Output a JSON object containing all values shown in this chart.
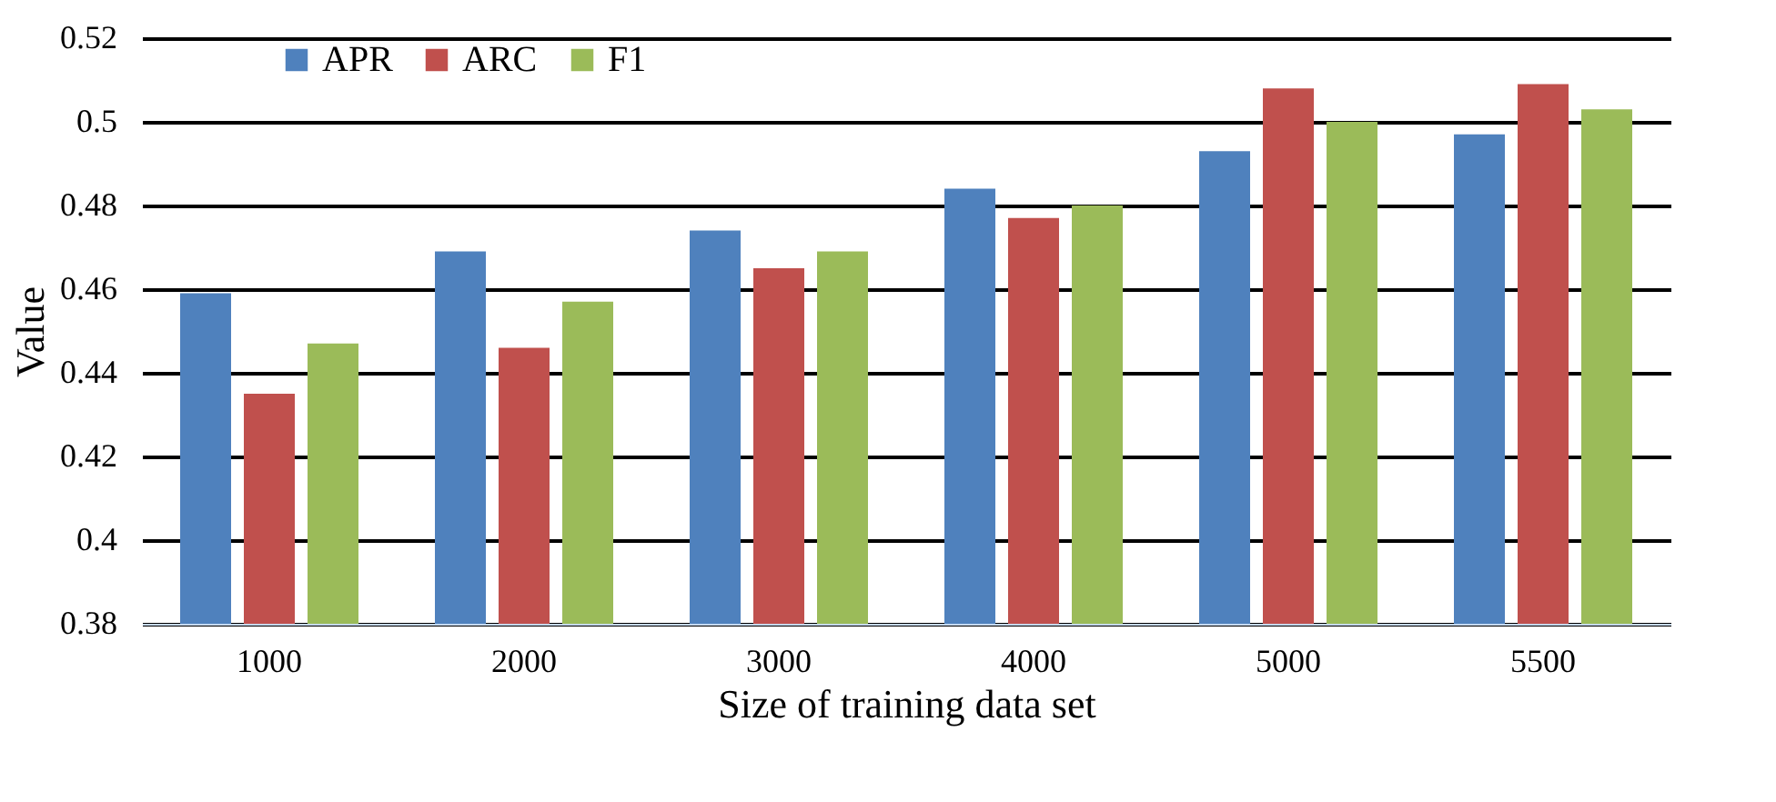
{
  "chart_data": {
    "type": "bar",
    "xlabel": "Size of training data set",
    "ylabel": "Value",
    "categories": [
      "1000",
      "2000",
      "3000",
      "4000",
      "5000",
      "5500"
    ],
    "series": [
      {
        "name": "APR",
        "color": "#4f81bd",
        "values": [
          0.459,
          0.469,
          0.474,
          0.484,
          0.493,
          0.497
        ]
      },
      {
        "name": "ARC",
        "color": "#c0504d",
        "values": [
          0.435,
          0.446,
          0.465,
          0.477,
          0.508,
          0.509
        ]
      },
      {
        "name": "F1",
        "color": "#9bbb59",
        "values": [
          0.447,
          0.457,
          0.469,
          0.48,
          0.5,
          0.503
        ]
      }
    ],
    "ylim": [
      0.38,
      0.52
    ],
    "yticks": [
      0.38,
      0.4,
      0.42,
      0.44,
      0.46,
      0.48,
      0.5,
      0.52
    ],
    "grid": "y",
    "legend": "top left"
  }
}
